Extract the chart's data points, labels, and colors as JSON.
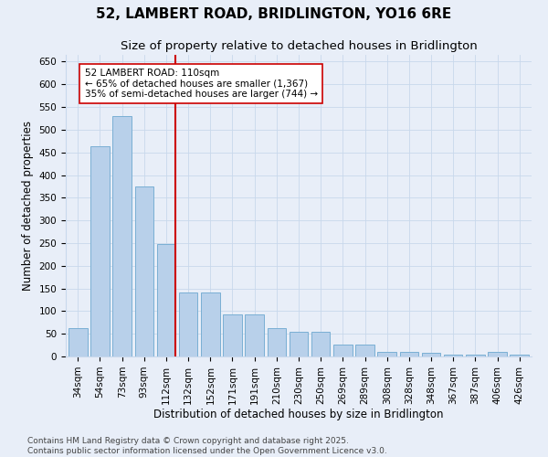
{
  "title": "52, LAMBERT ROAD, BRIDLINGTON, YO16 6RE",
  "subtitle": "Size of property relative to detached houses in Bridlington",
  "xlabel": "Distribution of detached houses by size in Bridlington",
  "ylabel": "Number of detached properties",
  "categories": [
    "34sqm",
    "54sqm",
    "73sqm",
    "93sqm",
    "112sqm",
    "132sqm",
    "152sqm",
    "171sqm",
    "191sqm",
    "210sqm",
    "230sqm",
    "250sqm",
    "269sqm",
    "289sqm",
    "308sqm",
    "328sqm",
    "348sqm",
    "367sqm",
    "387sqm",
    "406sqm",
    "426sqm"
  ],
  "values": [
    62,
    463,
    530,
    375,
    248,
    141,
    141,
    93,
    93,
    62,
    54,
    54,
    26,
    26,
    11,
    11,
    8,
    5,
    5,
    11,
    5
  ],
  "bar_color": "#b8d0ea",
  "bar_edge_color": "#7aafd4",
  "vline_x_index": 4,
  "vline_color": "#cc0000",
  "annotation_text": "52 LAMBERT ROAD: 110sqm\n← 65% of detached houses are smaller (1,367)\n35% of semi-detached houses are larger (744) →",
  "annotation_box_color": "#ffffff",
  "annotation_box_edge": "#cc0000",
  "ylim": [
    0,
    665
  ],
  "yticks": [
    0,
    50,
    100,
    150,
    200,
    250,
    300,
    350,
    400,
    450,
    500,
    550,
    600,
    650
  ],
  "footer_line1": "Contains HM Land Registry data © Crown copyright and database right 2025.",
  "footer_line2": "Contains public sector information licensed under the Open Government Licence v3.0.",
  "bg_color": "#e8eef8",
  "plot_bg_color": "#e8eef8",
  "title_fontsize": 11,
  "subtitle_fontsize": 9.5,
  "axis_label_fontsize": 8.5,
  "tick_fontsize": 7.5,
  "footer_fontsize": 6.5,
  "annotation_fontsize": 7.5
}
